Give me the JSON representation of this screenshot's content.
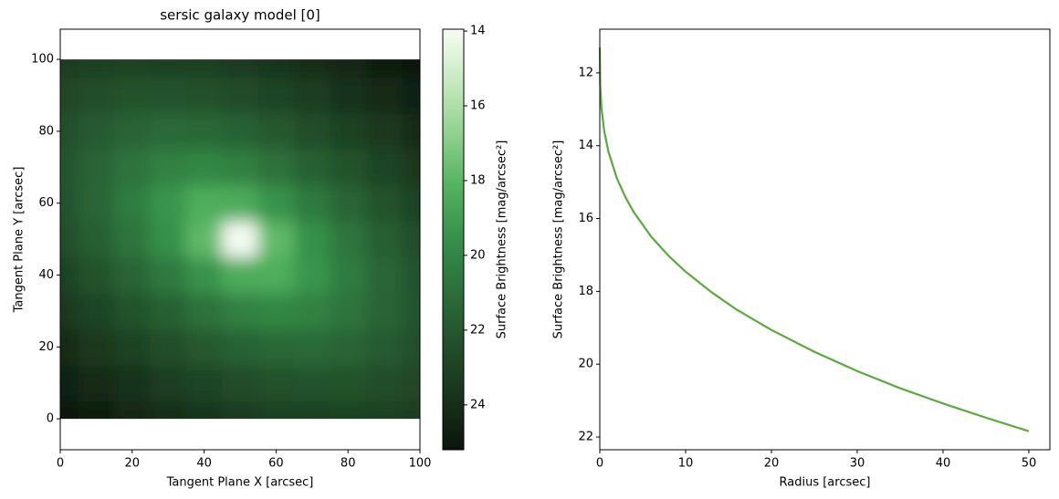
{
  "chart_data": [
    {
      "type": "heatmap",
      "title": "sersic galaxy model [0]",
      "xlabel": "Tangent Plane X [arcsec]",
      "ylabel": "Tangent Plane Y [arcsec]",
      "xlim": [
        0,
        100
      ],
      "ylim": [
        -8.6,
        108.4
      ],
      "xticks": [
        0,
        20,
        40,
        60,
        80,
        100
      ],
      "yticks": [
        0,
        20,
        40,
        60,
        80,
        100
      ],
      "x": [
        0,
        10,
        20,
        30,
        40,
        50,
        60,
        70,
        80,
        90,
        100
      ],
      "y": [
        0,
        10,
        20,
        30,
        40,
        50,
        60,
        70,
        80,
        90,
        100
      ],
      "values": [
        [
          25.2,
          24.83,
          24.44,
          24.07,
          23.73,
          23.43,
          23.21,
          23.08,
          23.06,
          23.15,
          23.35
        ],
        [
          24.67,
          24.22,
          23.77,
          23.33,
          22.92,
          22.57,
          22.31,
          22.21,
          22.27,
          22.49,
          22.82
        ],
        [
          24.09,
          23.58,
          23.04,
          22.5,
          21.98,
          21.53,
          21.26,
          21.23,
          21.46,
          21.88,
          22.39
        ],
        [
          23.52,
          22.91,
          22.25,
          21.55,
          20.85,
          20.24,
          19.96,
          20.18,
          20.76,
          21.46,
          22.17
        ],
        [
          22.97,
          22.26,
          21.45,
          20.51,
          19.44,
          18.4,
          18.35,
          19.37,
          20.45,
          21.39,
          22.21
        ],
        [
          22.5,
          21.7,
          20.75,
          19.55,
          17.85,
          14.0,
          17.85,
          19.55,
          20.75,
          21.7,
          22.5
        ],
        [
          22.21,
          21.39,
          20.45,
          19.37,
          18.35,
          18.4,
          19.44,
          20.51,
          21.45,
          22.26,
          22.97
        ],
        [
          22.17,
          21.46,
          20.76,
          20.18,
          19.96,
          20.24,
          20.85,
          21.55,
          22.25,
          22.91,
          23.52
        ],
        [
          22.39,
          21.88,
          21.46,
          21.23,
          21.26,
          21.53,
          21.98,
          22.5,
          23.04,
          23.58,
          24.09
        ],
        [
          22.82,
          22.49,
          22.27,
          22.21,
          22.31,
          22.57,
          22.92,
          23.33,
          23.77,
          24.22,
          24.67
        ],
        [
          23.35,
          23.15,
          23.06,
          23.08,
          23.21,
          23.43,
          23.73,
          24.07,
          24.44,
          24.83,
          25.2
        ]
      ],
      "colormap": [
        "#f7fcf5",
        "#c7e9c0",
        "#8fd18d",
        "#52b25f",
        "#35904a",
        "#2c6e39",
        "#234f2b",
        "#18331c",
        "#0b140c"
      ],
      "colorbar": {
        "label": "Surface Brightness [mag/arcsec²]",
        "lim": [
          13.95,
          25.2
        ],
        "ticks": [
          14,
          16,
          18,
          20,
          22,
          24
        ]
      }
    },
    {
      "type": "line",
      "xlabel": "Radius [arcsec]",
      "ylabel": "Surface Brightness [mag/arcsec²]",
      "xlim": [
        0,
        52.45
      ],
      "ylim": [
        10.8,
        22.35
      ],
      "yinverted": true,
      "xticks": [
        0,
        10,
        20,
        30,
        40,
        50
      ],
      "yticks": [
        12,
        14,
        16,
        18,
        20,
        22
      ],
      "x": [
        0,
        0.05,
        0.2,
        0.5,
        1,
        2,
        3,
        4,
        6,
        8,
        10,
        13,
        16,
        20,
        25,
        30,
        35,
        40,
        45,
        50
      ],
      "values": [
        11.3,
        12.35,
        12.97,
        13.57,
        14.16,
        14.9,
        15.42,
        15.84,
        16.5,
        17.02,
        17.46,
        18.02,
        18.51,
        19.06,
        19.66,
        20.19,
        20.66,
        21.08,
        21.47,
        21.84
      ],
      "color": "#5aaa3c"
    }
  ]
}
